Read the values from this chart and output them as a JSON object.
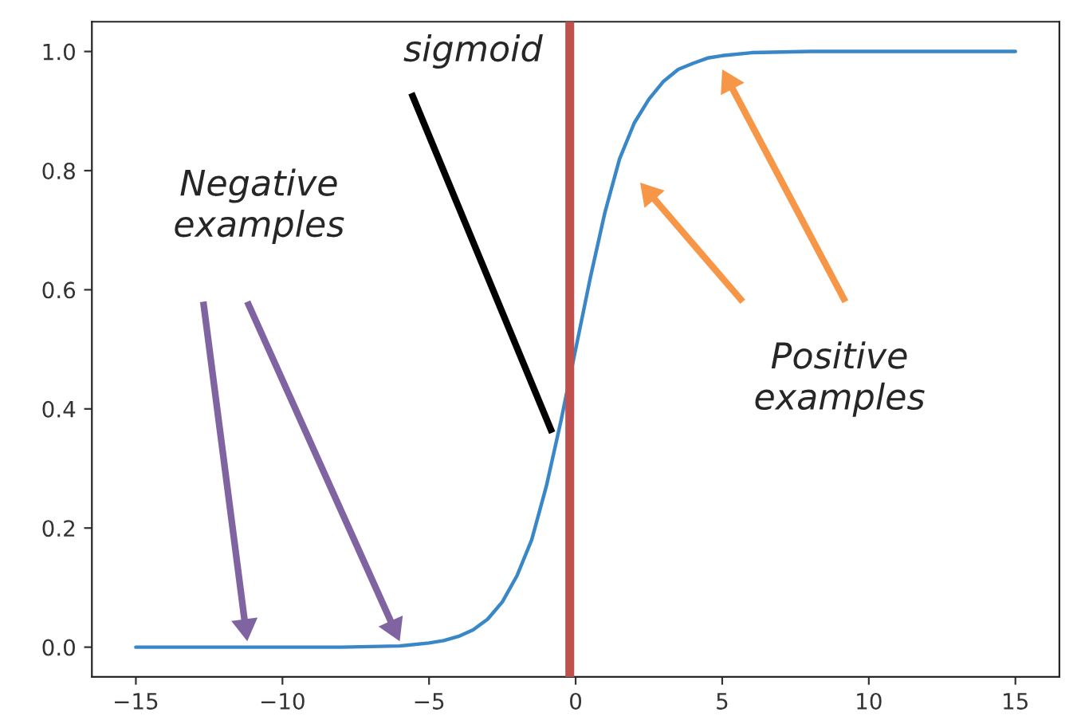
{
  "chart_data": {
    "type": "line",
    "x": [
      -15,
      -10,
      -8,
      -6,
      -5,
      -4.5,
      -4,
      -3.5,
      -3,
      -2.5,
      -2,
      -1.5,
      -1,
      -0.5,
      0,
      0.5,
      1,
      1.5,
      2,
      2.5,
      3,
      3.5,
      4,
      4.5,
      5,
      6,
      8,
      10,
      15
    ],
    "series": [
      {
        "color": "#3a87c8",
        "values": [
          0.0,
          0.0,
          0.0,
          0.002,
          0.007,
          0.011,
          0.018,
          0.029,
          0.047,
          0.076,
          0.12,
          0.18,
          0.27,
          0.38,
          0.5,
          0.62,
          0.73,
          0.82,
          0.88,
          0.92,
          0.95,
          0.97,
          0.98,
          0.989,
          0.993,
          0.998,
          1.0,
          1.0,
          1.0
        ]
      }
    ],
    "xlim": [
      -16.5,
      16.5
    ],
    "ylim": [
      -0.05,
      1.05
    ],
    "xticks": [
      {
        "value": -15,
        "label": "−15"
      },
      {
        "value": -10,
        "label": "−10"
      },
      {
        "value": -5,
        "label": "−5"
      },
      0,
      5,
      10,
      15
    ],
    "yticks": [
      {
        "value": 0,
        "label": "0.0"
      },
      {
        "value": 0.2,
        "label": "0.2"
      },
      {
        "value": 0.4,
        "label": "0.4"
      },
      {
        "value": 0.6,
        "label": "0.6"
      },
      {
        "value": 0.8,
        "label": "0.8"
      },
      {
        "value": 1,
        "label": "1.0"
      }
    ],
    "ref_lines": [
      {
        "axis": "x",
        "value": -0.2,
        "color": "#c0504d"
      }
    ],
    "annotations": [
      "sigmoid",
      "Negative\nexamples",
      "Positive\nexamples"
    ],
    "grid": false,
    "legend": false,
    "marker": "none",
    "line_style": "solid"
  }
}
